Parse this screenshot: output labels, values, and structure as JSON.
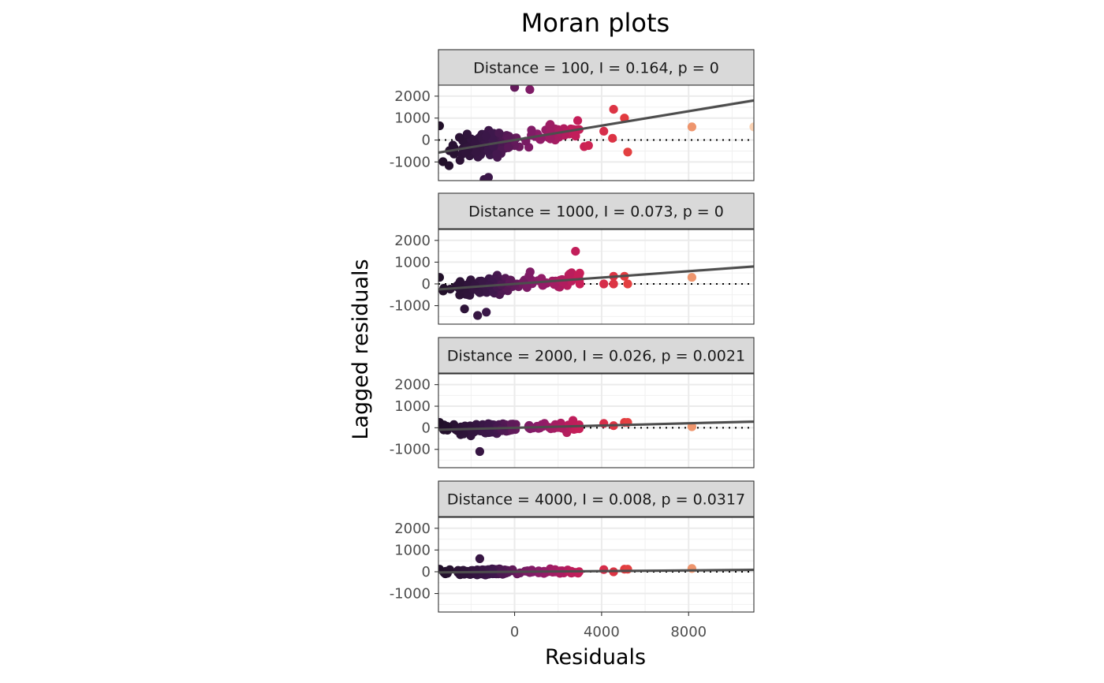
{
  "chart_data": {
    "type": "scatter",
    "title": "Moran plots",
    "xlabel": "Residuals",
    "ylabel": "Lagged residuals",
    "xlim": [
      -3500,
      11000
    ],
    "ylim": [
      -1850,
      2500
    ],
    "x_ticks": [
      0,
      4000,
      8000
    ],
    "x_tick_labels": [
      "0",
      "4000",
      "8000"
    ],
    "y_ticks": [
      2000,
      1000,
      0,
      -1000
    ],
    "y_tick_labels": [
      "2000",
      "1000",
      "0",
      "-1000"
    ],
    "hline": 0,
    "point_color": "continuous (dark purple → magenta → red → peach) by residual",
    "panels": [
      {
        "strip": "Distance = 100, I = 0.164, p = 0",
        "distance": 100,
        "moran_i": 0.164,
        "p": "0",
        "regression_line": {
          "slope": 0.164,
          "intercept": 0
        },
        "spread": 600,
        "outliers": [
          [
            8150,
            600
          ],
          [
            4550,
            1400
          ],
          [
            5050,
            1000
          ],
          [
            4100,
            400
          ],
          [
            4500,
            80
          ],
          [
            5200,
            -550
          ],
          [
            3200,
            -300
          ],
          [
            3400,
            -250
          ],
          [
            11000,
            600
          ],
          [
            -3450,
            650
          ],
          [
            -1400,
            -1800
          ],
          [
            -1200,
            -1700
          ],
          [
            0,
            2400
          ],
          [
            700,
            2300
          ]
        ]
      },
      {
        "strip": "Distance = 1000, I = 0.073, p = 0",
        "distance": 1000,
        "moran_i": 0.073,
        "p": "0",
        "regression_line": {
          "slope": 0.073,
          "intercept": 0
        },
        "spread": 400,
        "outliers": [
          [
            8150,
            300
          ],
          [
            4550,
            350
          ],
          [
            5050,
            350
          ],
          [
            4100,
            0
          ],
          [
            4550,
            0
          ],
          [
            5200,
            0
          ],
          [
            2800,
            1500
          ],
          [
            3000,
            0
          ],
          [
            -3450,
            300
          ],
          [
            -1700,
            -1450
          ],
          [
            -1300,
            -1300
          ],
          [
            -2300,
            -1150
          ]
        ]
      },
      {
        "strip": "Distance = 2000, I = 0.026, p = 0.0021",
        "distance": 2000,
        "moran_i": 0.026,
        "p": "0.0021",
        "regression_line": {
          "slope": 0.026,
          "intercept": 0
        },
        "spread": 250,
        "outliers": [
          [
            8150,
            50
          ],
          [
            5050,
            250
          ],
          [
            5200,
            250
          ],
          [
            4550,
            100
          ],
          [
            4100,
            200
          ],
          [
            -3450,
            250
          ],
          [
            -1600,
            -1100
          ]
        ]
      },
      {
        "strip": "Distance = 4000, I = 0.008, p = 0.0317",
        "distance": 4000,
        "moran_i": 0.008,
        "p": "0.0317",
        "regression_line": {
          "slope": 0.008,
          "intercept": 0
        },
        "spread": 130,
        "outliers": [
          [
            8150,
            150
          ],
          [
            5050,
            120
          ],
          [
            5200,
            120
          ],
          [
            4550,
            0
          ],
          [
            4100,
            100
          ],
          [
            -3450,
            120
          ],
          [
            -1600,
            600
          ]
        ]
      }
    ]
  }
}
